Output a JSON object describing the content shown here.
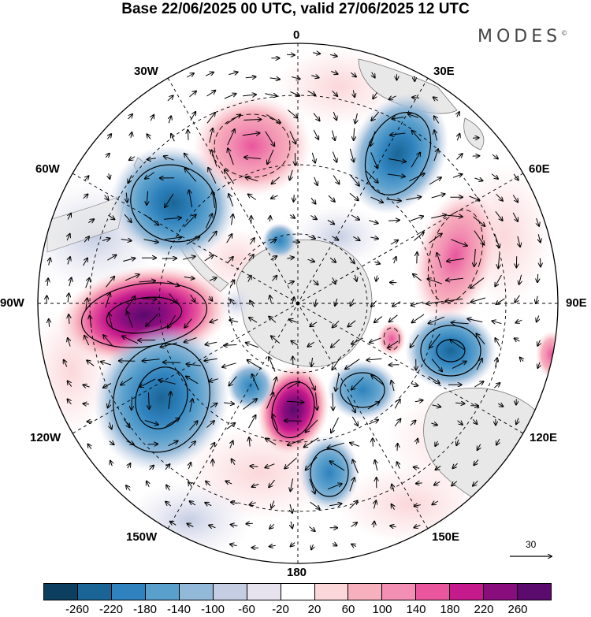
{
  "title": "Base 22/06/2025 00 UTC, valid 27/06/2025 12 UTC",
  "brand": "MODES",
  "brand_mark": "©",
  "projection": "south-polar-stereographic",
  "longitude_labels": {
    "top": "0",
    "top_right": "30E",
    "right_upper": "60E",
    "right": "90E",
    "right_lower": "120E",
    "bottom_right": "150E",
    "bottom": "180",
    "bottom_left": "150W",
    "left_lower": "120W",
    "left": "90W",
    "left_upper": "60W",
    "top_left": "30W"
  },
  "reference_vector": {
    "value": "30"
  },
  "colorbar": {
    "colors": [
      "#0b3e5f",
      "#1a6596",
      "#2f82bd",
      "#5aa0cd",
      "#93b9d8",
      "#c5cde3",
      "#e6e3ef",
      "#ffffff",
      "#fbd7da",
      "#f7b0bd",
      "#f28fb2",
      "#e9569d",
      "#c41a8c",
      "#8a0d7e",
      "#5b0a6e"
    ],
    "labels": [
      "-260",
      "-220",
      "-180",
      "-140",
      "-100",
      "-60",
      "-20",
      "20",
      "60",
      "100",
      "140",
      "180",
      "220",
      "260"
    ]
  },
  "anomaly_centers": [
    {
      "sign": "positive",
      "magnitude": 240,
      "sector": "90W-110W"
    },
    {
      "sign": "negative",
      "magnitude": 200,
      "sector": "110W-130W"
    },
    {
      "sign": "negative",
      "magnitude": 180,
      "sector": "50W-60W"
    },
    {
      "sign": "positive",
      "magnitude": 140,
      "sector": "10W-20W"
    },
    {
      "sign": "negative",
      "magnitude": 180,
      "sector": "30E-40E"
    },
    {
      "sign": "positive",
      "magnitude": 140,
      "sector": "65E-75E"
    },
    {
      "sign": "negative",
      "magnitude": 160,
      "sector": "95E-100E"
    },
    {
      "sign": "positive",
      "magnitude": 180,
      "sector": "170W-180"
    },
    {
      "sign": "negative",
      "magnitude": 100,
      "sector": "150E-160E"
    },
    {
      "sign": "negative",
      "magnitude": 120,
      "sector": "145E-155E"
    }
  ]
}
